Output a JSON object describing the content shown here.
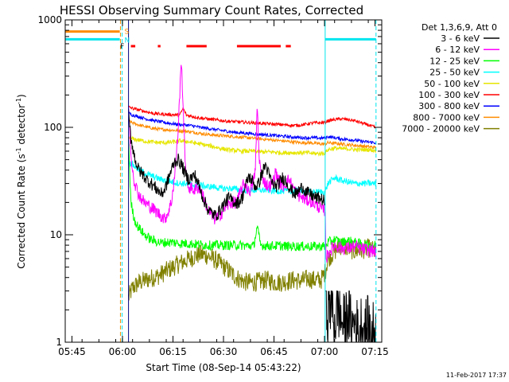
{
  "chart_data": {
    "type": "line",
    "title": "HESSI Observing Summary Count Rates, Corrected",
    "xlabel": "Start Time (08-Sep-14 05:43:22)",
    "ylabel_main": "Corrected Count Rate (s",
    "ylabel_sup1": "-1",
    "ylabel_mid": " detector",
    "ylabel_sup2": "-1",
    "ylabel_end": ")",
    "x_range_min": [
      0,
      94
    ],
    "y_scale": "log",
    "ylim": [
      1,
      1000
    ],
    "x_ticks": [
      {
        "t": 2,
        "label": "05:45"
      },
      {
        "t": 17,
        "label": "06:00"
      },
      {
        "t": 32,
        "label": "06:15"
      },
      {
        "t": 47,
        "label": "06:30"
      },
      {
        "t": 62,
        "label": "06:45"
      },
      {
        "t": 77,
        "label": "07:00"
      },
      {
        "t": 92,
        "label": "07:15"
      }
    ],
    "y_ticks": [
      {
        "v": 1,
        "label": "1"
      },
      {
        "v": 10,
        "label": "10"
      },
      {
        "v": 100,
        "label": "100"
      },
      {
        "v": 1000,
        "label": "1000"
      }
    ],
    "legend_header": "Det 1,3,6,9, Att 0",
    "legend_position": "right",
    "footer_date": "11-Feb-2017 17:37",
    "flags": [
      {
        "letter": "S",
        "color": "#ff8c00",
        "start": 0,
        "end": 16.2
      },
      {
        "letter": "N",
        "color": "#00e5ee",
        "start": 0,
        "end": 16.2
      },
      {
        "letter": "F",
        "color": "#ff0000",
        "segments": [
          [
            19.5,
            20.8
          ],
          [
            27.5,
            28.3
          ],
          [
            36.0,
            42.0
          ],
          [
            51.0,
            64.0
          ],
          [
            65.5,
            67.0
          ]
        ]
      }
    ],
    "markers": [
      {
        "t": 16.4,
        "color": "#ff8c00",
        "style": "dashed"
      },
      {
        "t": 16.9,
        "color": "#00e5ee",
        "style": "dashed"
      },
      {
        "t": 18.8,
        "color": "#000080",
        "style": "solid"
      },
      {
        "t": 77.2,
        "color": "#00e5ee",
        "style": "solid"
      },
      {
        "t": 92.3,
        "color": "#00e5ee",
        "style": "dashed"
      }
    ],
    "gap_t": [
      18.8,
      77.2
    ],
    "n_topline": {
      "color": "#00e5ee",
      "segments": [
        [
          0,
          16.2
        ],
        [
          77.2,
          92.3
        ]
      ],
      "value": 660
    },
    "s_topline": {
      "color": "#ff8c00",
      "segments": [
        [
          0,
          16.2
        ]
      ],
      "value": 780
    },
    "series": [
      {
        "name": "3 - 6 keV",
        "color": "#000000",
        "noise": 0.06,
        "x": [
          18.8,
          19.5,
          20.5,
          21.5,
          22.5,
          23.5,
          24.5,
          25.5,
          26.5,
          27.5,
          28.5,
          29.5,
          30.5,
          31.5,
          32.5,
          33.5,
          34.5,
          35.5,
          36.5,
          37.5,
          38.5,
          39.5,
          40.5,
          41.5,
          42.5,
          43.5,
          44.5,
          45.5,
          46.5,
          47.5,
          48.5,
          49.5,
          50.5,
          51.5,
          52.5,
          53.5,
          54.5,
          55.5,
          56.5,
          57.5,
          58.5,
          59.5,
          60.5,
          61.5,
          62.5,
          63.5,
          64.5,
          65.5,
          66.5,
          67.5,
          68.5,
          69.5,
          70.5,
          71.5,
          72.5,
          73.5,
          74.5,
          75.5,
          76.5,
          77.2
        ],
        "y": [
          130,
          80,
          55,
          42,
          38,
          35,
          32,
          30,
          28,
          26,
          24,
          26,
          32,
          40,
          48,
          50,
          45,
          38,
          33,
          34,
          36,
          30,
          24,
          20,
          17,
          16,
          15,
          16,
          18,
          20,
          22,
          21,
          20,
          20,
          22,
          28,
          35,
          32,
          28,
          30,
          38,
          45,
          36,
          30,
          28,
          30,
          34,
          32,
          28,
          25,
          24,
          26,
          28,
          25,
          24,
          23,
          22,
          22,
          21,
          20
        ]
      },
      {
        "name": "6 - 12 keV",
        "color": "#ff00ff",
        "noise": 0.06,
        "x": [
          18.8,
          19.5,
          20.5,
          21.5,
          22.5,
          23.5,
          24.5,
          25.5,
          26.5,
          27.5,
          28.5,
          29.5,
          30.5,
          31.5,
          32.5,
          33.5,
          34.0,
          34.5,
          35.0,
          35.5,
          36.0,
          36.5,
          37.5,
          38.5,
          39.5,
          40.5,
          41.5,
          42.5,
          43.5,
          44.5,
          45.5,
          46.5,
          47.5,
          48.5,
          49.5,
          50.5,
          51.5,
          52.5,
          53.5,
          54.5,
          55.5,
          56.5,
          57.0,
          57.5,
          58.0,
          58.5,
          59.5,
          60.5,
          61.5,
          62.5,
          63.5,
          64.5,
          65.5,
          66.5,
          67.5,
          68.5,
          69.5,
          70.5,
          71.5,
          72.5,
          73.5,
          74.5,
          75.5,
          76.5,
          77.2,
          77.5,
          78.5,
          80,
          82,
          84,
          86,
          88,
          90,
          92,
          92.3
        ],
        "y": [
          150,
          55,
          32,
          25,
          22,
          20,
          19,
          18,
          17,
          16,
          15,
          14,
          16,
          20,
          35,
          90,
          200,
          420,
          160,
          60,
          35,
          28,
          27,
          26,
          28,
          25,
          20,
          17,
          15,
          14,
          15,
          16,
          18,
          19,
          20,
          20,
          22,
          28,
          30,
          25,
          28,
          40,
          170,
          60,
          40,
          35,
          30,
          28,
          30,
          38,
          32,
          28,
          30,
          33,
          28,
          25,
          23,
          22,
          21,
          21,
          20,
          19,
          18,
          17,
          17,
          6,
          7,
          8,
          7.5,
          7.5,
          7.8,
          7.4,
          7.2,
          7.0,
          7.0
        ]
      },
      {
        "name": "12 - 25 keV",
        "color": "#00ff00",
        "noise": 0.045,
        "x": [
          18.8,
          19.5,
          20.5,
          21.5,
          22.5,
          23.5,
          24.5,
          25.5,
          26.5,
          27.5,
          28.5,
          30,
          32,
          34,
          36,
          38,
          40,
          42,
          44,
          46,
          48,
          50,
          52,
          54,
          56,
          57,
          58,
          60,
          62,
          64,
          66,
          68,
          70,
          72,
          74,
          76,
          77.2,
          78,
          80,
          82,
          84,
          86,
          88,
          90,
          92,
          92.3
        ],
        "y": [
          80,
          20,
          14,
          12,
          11,
          10,
          9.5,
          9,
          8.8,
          8.6,
          8.4,
          8.5,
          8.5,
          8.3,
          8.3,
          8.2,
          8.1,
          8.0,
          8.0,
          8.0,
          8.0,
          8.0,
          8.0,
          7.9,
          7.9,
          12,
          8.0,
          7.9,
          7.9,
          7.9,
          7.8,
          7.8,
          7.8,
          7.8,
          7.8,
          7.8,
          7.8,
          8.5,
          9,
          8.5,
          8.8,
          8.5,
          8.2,
          8.0,
          8.0,
          8.0
        ]
      },
      {
        "name": "25 - 50 keV",
        "color": "#00ffff",
        "noise": 0.03,
        "x": [
          18.8,
          20,
          22,
          24,
          26,
          28,
          30,
          32,
          34,
          36,
          38,
          40,
          42,
          44,
          46,
          48,
          50,
          52,
          54,
          56,
          58,
          60,
          62,
          64,
          66,
          68,
          70,
          72,
          74,
          76,
          77.2,
          78,
          80,
          82,
          84,
          86,
          88,
          90,
          92,
          92.3
        ],
        "y": [
          48,
          45,
          40,
          37,
          35,
          33,
          32,
          31,
          30,
          30,
          29,
          29,
          28,
          28,
          27,
          27,
          27,
          26,
          26,
          26,
          26,
          26,
          25.5,
          25.5,
          25.5,
          25.5,
          25.5,
          25,
          25,
          25,
          25,
          30,
          34,
          32,
          31,
          30,
          30,
          30,
          30,
          30
        ]
      },
      {
        "name": "50 - 100 keV",
        "color": "#e6e600",
        "noise": 0.02,
        "x": [
          18.8,
          20,
          22,
          24,
          26,
          28,
          30,
          32,
          34,
          36,
          38,
          40,
          42,
          44,
          46,
          48,
          50,
          52,
          54,
          56,
          58,
          60,
          62,
          64,
          66,
          68,
          70,
          72,
          74,
          76,
          77.2,
          78,
          80,
          82,
          84,
          86,
          88,
          90,
          92,
          92.3
        ],
        "y": [
          80,
          78,
          76,
          74,
          73,
          72,
          72,
          73,
          75,
          74,
          72,
          70,
          68,
          66,
          64,
          62,
          61,
          60,
          60,
          60,
          59,
          59,
          59,
          58,
          58,
          58,
          58,
          58,
          57,
          57,
          58,
          62,
          64,
          63,
          63,
          62,
          62,
          62,
          61,
          61
        ]
      },
      {
        "name": "100 - 300 keV",
        "color": "#ff0000",
        "noise": 0.015,
        "x": [
          18.8,
          20,
          22,
          24,
          26,
          28,
          30,
          32,
          34,
          35,
          36,
          38,
          40,
          42,
          44,
          46,
          48,
          50,
          52,
          54,
          56,
          58,
          60,
          62,
          64,
          66,
          68,
          70,
          72,
          74,
          76,
          77.2,
          78,
          80,
          82,
          84,
          86,
          88,
          90,
          92,
          92.3
        ],
        "y": [
          155,
          150,
          145,
          140,
          135,
          133,
          132,
          131,
          130,
          150,
          130,
          126,
          122,
          120,
          118,
          116,
          114,
          113,
          112,
          111,
          110,
          109,
          108,
          107,
          106,
          105,
          104,
          105,
          108,
          110,
          110,
          112,
          115,
          118,
          120,
          118,
          115,
          110,
          105,
          100,
          98
        ]
      },
      {
        "name": "300 - 800 keV",
        "color": "#0000ff",
        "noise": 0.015,
        "x": [
          18.8,
          20,
          22,
          24,
          26,
          28,
          30,
          32,
          34,
          36,
          38,
          40,
          42,
          44,
          46,
          48,
          50,
          52,
          54,
          56,
          58,
          60,
          62,
          64,
          66,
          68,
          70,
          72,
          74,
          76,
          77.2,
          78,
          80,
          82,
          84,
          86,
          88,
          90,
          92,
          92.3
        ],
        "y": [
          135,
          130,
          125,
          120,
          116,
          113,
          110,
          108,
          106,
          105,
          103,
          100,
          98,
          96,
          94,
          92,
          90,
          89,
          88,
          87,
          86,
          85,
          84,
          83,
          82,
          81,
          80,
          80,
          80,
          79,
          80,
          82,
          80,
          78,
          77,
          76,
          74,
          73,
          72,
          71
        ]
      },
      {
        "name": "800 - 7000 keV",
        "color": "#ff8c00",
        "noise": 0.015,
        "x": [
          18.8,
          20,
          22,
          24,
          26,
          28,
          30,
          32,
          34,
          36,
          38,
          40,
          42,
          44,
          46,
          48,
          50,
          52,
          54,
          56,
          58,
          60,
          62,
          64,
          66,
          68,
          70,
          72,
          74,
          76,
          77.2,
          78,
          80,
          82,
          84,
          86,
          88,
          90,
          92,
          92.3
        ],
        "y": [
          115,
          110,
          105,
          101,
          98,
          96,
          95,
          94,
          93,
          92,
          90,
          88,
          86,
          85,
          84,
          83,
          82,
          81,
          80,
          79,
          78,
          77,
          76,
          75,
          74,
          73,
          72,
          72,
          71,
          70,
          70,
          72,
          71,
          70,
          69,
          68,
          67,
          66,
          65,
          65
        ]
      },
      {
        "name": "7000 - 20000 keV",
        "color": "#808000",
        "noise": 0.09,
        "x": [
          18.8,
          20,
          22,
          24,
          26,
          28,
          30,
          32,
          34,
          36,
          38,
          40,
          42,
          44,
          46,
          48,
          50,
          52,
          54,
          56,
          58,
          60,
          62,
          64,
          66,
          68,
          70,
          72,
          74,
          76,
          77.2,
          78,
          80,
          82,
          84,
          86,
          88,
          90,
          92,
          92.3
        ],
        "y": [
          2.6,
          3.2,
          3.6,
          3.8,
          4.0,
          4.2,
          4.6,
          5.0,
          5.4,
          5.8,
          6.2,
          6.6,
          6.4,
          6.0,
          5.4,
          4.8,
          4.2,
          3.8,
          3.6,
          3.6,
          3.7,
          3.8,
          3.6,
          3.6,
          3.7,
          3.8,
          3.7,
          3.9,
          3.8,
          3.8,
          4.5,
          6.0,
          7.0,
          8.0,
          7.5,
          7.0,
          7.2,
          7.5,
          7.0,
          7.0
        ]
      }
    ],
    "extra_black_segment": {
      "x": [
        77.3,
        78,
        79,
        80,
        81,
        82,
        83,
        84,
        85,
        86,
        87,
        88,
        89,
        90,
        91,
        92,
        92.3
      ],
      "y": [
        2.8,
        1.8,
        2.5,
        1.5,
        2.2,
        1.6,
        1.4,
        2.0,
        1.3,
        1.6,
        1.2,
        1.5,
        1.3,
        1.4,
        1.2,
        1.3,
        1.3
      ]
    }
  }
}
